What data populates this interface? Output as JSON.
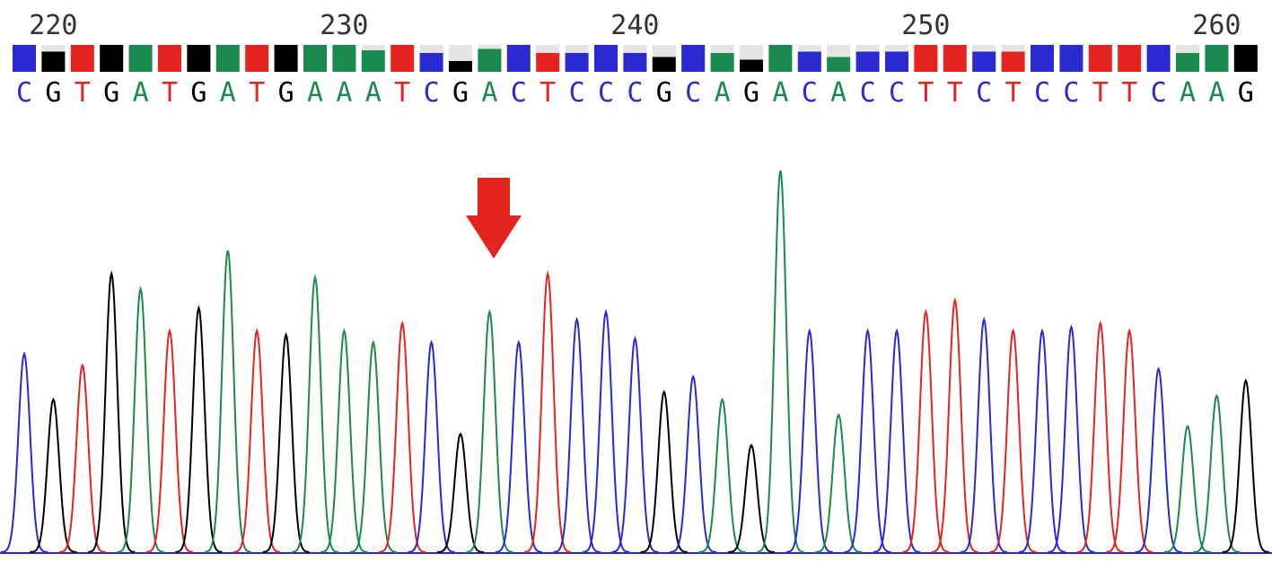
{
  "chart_data": {
    "type": "chromatogram",
    "first_position": 219,
    "positions": [
      220,
      230,
      240,
      250,
      260
    ],
    "sequence": [
      "C",
      "G",
      "T",
      "G",
      "A",
      "T",
      "G",
      "A",
      "T",
      "G",
      "A",
      "A",
      "A",
      "T",
      "C",
      "G",
      "A",
      "C",
      "T",
      "C",
      "C",
      "C",
      "G",
      "C",
      "A",
      "G",
      "A",
      "C",
      "A",
      "C",
      "C",
      "T",
      "T",
      "C",
      "T",
      "C",
      "C",
      "T",
      "T",
      "C",
      "A",
      "A",
      "G"
    ],
    "quality": [
      40,
      30,
      40,
      40,
      40,
      40,
      40,
      40,
      40,
      40,
      40,
      40,
      32,
      40,
      28,
      16,
      34,
      40,
      28,
      28,
      40,
      28,
      22,
      40,
      28,
      18,
      40,
      30,
      22,
      30,
      30,
      40,
      40,
      30,
      30,
      40,
      40,
      40,
      40,
      40,
      28,
      40,
      40
    ],
    "quality_max": 40,
    "peak_heights": [
      52,
      40,
      49,
      73,
      69,
      58,
      64,
      79,
      58,
      57,
      72,
      58,
      55,
      60,
      55,
      31,
      63,
      55,
      73,
      61,
      63,
      56,
      42,
      46,
      40,
      28,
      100,
      58,
      36,
      58,
      58,
      63,
      66,
      61,
      58,
      58,
      59,
      60,
      58,
      48,
      33,
      41,
      45
    ],
    "ylim": [
      0,
      100
    ],
    "base_colors": {
      "A": "#1b8a4f",
      "C": "#2a2ad0",
      "G": "#000000",
      "T": "#e3241f"
    }
  }
}
